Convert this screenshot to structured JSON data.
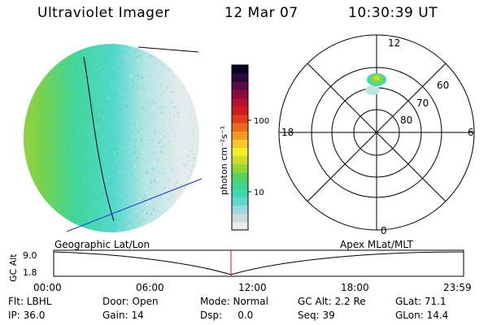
{
  "header": {
    "instrument": "Ultraviolet Imager",
    "date": "12 Mar 07",
    "time": "10:30:39 UT"
  },
  "colorbar": {
    "unit_label": "photon cm⁻²s⁻¹",
    "ticks": [
      "100",
      "10"
    ],
    "colors": [
      "#e8ecec",
      "#c8dcdc",
      "#9ed8dc",
      "#5fd7cc",
      "#3fd7b0",
      "#3fd38e",
      "#54d25a",
      "#8fd63a",
      "#c8de2a",
      "#eef02a",
      "#f8c72a",
      "#f39a1f",
      "#ec6a1a",
      "#e33a1a",
      "#d21a1a",
      "#b81030",
      "#8a0c3a",
      "#5a0a44",
      "#2a0840",
      "#0a0420"
    ]
  },
  "polar": {
    "mlt_labels": {
      "top": "12",
      "bottom": "0",
      "left": "18",
      "right": "6"
    },
    "lat_labels": [
      "60",
      "70",
      "80"
    ]
  },
  "timeline": {
    "left_label": "Geographic Lat/Lon",
    "right_label": "Apex MLat/MLT",
    "axis_label": "GC Alt",
    "y_ticks": [
      "9.0",
      "1.8"
    ],
    "x_ticks": [
      "00:00",
      "06:00",
      "12:00",
      "18:00",
      "23:59"
    ]
  },
  "status": {
    "row1": [
      "Flt: LBHL",
      "Door: Open",
      "Mode: Normal",
      "GC Alt: 2.2 Re",
      "GLat:  71.1"
    ],
    "row2": [
      "IP: 36.0",
      "Gain: 14",
      "Dsp:     0.0",
      "Seq: 39",
      "GLon:  14.4"
    ]
  }
}
